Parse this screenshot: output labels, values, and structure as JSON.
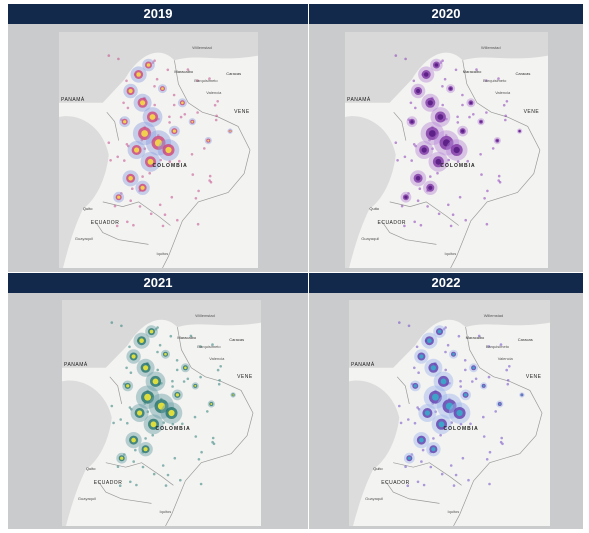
{
  "panels": [
    {
      "year": "2019",
      "theme": "red-yellow"
    },
    {
      "year": "2020",
      "theme": "purple"
    },
    {
      "year": "2021",
      "theme": "green-yellow"
    },
    {
      "year": "2022",
      "theme": "blue-purple"
    }
  ],
  "map_labels": {
    "panama": "PANAMÁ",
    "colombia": "COLOMBIA",
    "ecuador": "ECUADOR",
    "venezuela": "VENE",
    "caracas": "Caracas",
    "maracaibo": "Maracaibo",
    "barquisimeto": "Barquisimeto",
    "quito": "Quito",
    "guayaquil": "Guayaquil",
    "iquitos": "Iquitos",
    "valencia": "Valencia",
    "willemstad": "Willemstad"
  },
  "colors": {
    "header_bg": "#13294b",
    "panel_bg": "#c9cbcc",
    "map_land": "#f3f3f1",
    "map_water": "#dcdcdc",
    "border_line": "#9a9a9a"
  }
}
